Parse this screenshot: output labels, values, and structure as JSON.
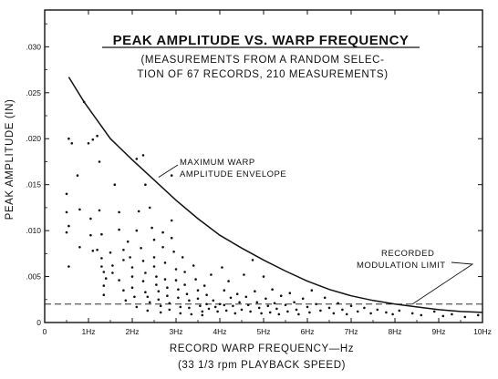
{
  "chart_data": {
    "type": "scatter",
    "title": "PEAK AMPLITUDE  VS. WARP FREQUENCY",
    "subtitle_lines": [
      "(MEASUREMENTS FROM A RANDOM SELEC-",
      "TION OF 67 RECORDS, 210 MEASUREMENTS)"
    ],
    "xlabel": "RECORD WARP FREQUENCY—Hz",
    "xlabel_sub": "(33 1/3 rpm  PLAYBACK SPEED)",
    "ylabel": "PEAK AMPLITUDE (IN)",
    "xlim": [
      0,
      10
    ],
    "ylim": [
      0,
      0.034
    ],
    "grid": false,
    "x_ticks": [
      {
        "value": 0,
        "label": "0"
      },
      {
        "value": 1,
        "label": "1Hz"
      },
      {
        "value": 2,
        "label": "2Hz"
      },
      {
        "value": 3,
        "label": "3Hz"
      },
      {
        "value": 4,
        "label": "4Hz"
      },
      {
        "value": 5,
        "label": "5Hz"
      },
      {
        "value": 6,
        "label": "6Hz"
      },
      {
        "value": 7,
        "label": "7Hz"
      },
      {
        "value": 8,
        "label": "8Hz"
      },
      {
        "value": 9,
        "label": "9Hz"
      },
      {
        "value": 10,
        "label": "10Hz"
      }
    ],
    "y_ticks": [
      {
        "value": 0,
        "label": "0"
      },
      {
        "value": 0.005,
        "label": ".005"
      },
      {
        "value": 0.01,
        "label": ".010"
      },
      {
        "value": 0.015,
        "label": ".015"
      },
      {
        "value": 0.02,
        "label": ".020"
      },
      {
        "value": 0.025,
        "label": ".025"
      },
      {
        "value": 0.03,
        "label": ".030"
      }
    ],
    "series": [
      {
        "name": "MAXIMUM WARP AMPLITUDE ENVELOPE",
        "kind": "line",
        "x": [
          0.55,
          0.9,
          1.2,
          1.5,
          2.0,
          2.5,
          3.0,
          3.5,
          4.0,
          4.5,
          5.0,
          5.5,
          6.0,
          6.5,
          7.0,
          7.5,
          8.0,
          8.5,
          9.0,
          9.5,
          10.0
        ],
        "y": [
          0.0267,
          0.024,
          0.022,
          0.02,
          0.0177,
          0.0155,
          0.0133,
          0.0113,
          0.0095,
          0.0081,
          0.0068,
          0.0056,
          0.0045,
          0.0036,
          0.0029,
          0.0024,
          0.002,
          0.0017,
          0.0014,
          0.0012,
          0.0011
        ]
      },
      {
        "name": "RECORDED MODULATION LIMIT",
        "kind": "dashed",
        "x": [
          0.0,
          10.0
        ],
        "y": [
          0.002,
          0.002
        ]
      },
      {
        "name": "measurements",
        "kind": "scatter",
        "points": [
          [
            0.5,
            0.014
          ],
          [
            0.5,
            0.012
          ],
          [
            0.55,
            0.0105
          ],
          [
            0.5,
            0.0098
          ],
          [
            0.55,
            0.0061
          ],
          [
            0.55,
            0.02
          ],
          [
            0.62,
            0.0195
          ],
          [
            0.75,
            0.016
          ],
          [
            0.8,
            0.0123
          ],
          [
            0.8,
            0.0082
          ],
          [
            0.9,
            0.024
          ],
          [
            1.0,
            0.0195
          ],
          [
            1.05,
            0.0095
          ],
          [
            1.05,
            0.0113
          ],
          [
            1.1,
            0.0078
          ],
          [
            1.1,
            0.0199
          ],
          [
            1.2,
            0.0203
          ],
          [
            1.25,
            0.0175
          ],
          [
            1.25,
            0.0122
          ],
          [
            1.3,
            0.0096
          ],
          [
            1.2,
            0.0079
          ],
          [
            1.3,
            0.007
          ],
          [
            1.3,
            0.0061
          ],
          [
            1.35,
            0.0055
          ],
          [
            1.4,
            0.0048
          ],
          [
            1.35,
            0.004
          ],
          [
            1.35,
            0.003
          ],
          [
            1.5,
            0.0076
          ],
          [
            1.55,
            0.0062
          ],
          [
            1.55,
            0.0054
          ],
          [
            1.6,
            0.015
          ],
          [
            1.7,
            0.012
          ],
          [
            1.7,
            0.0101
          ],
          [
            1.8,
            0.0079
          ],
          [
            1.8,
            0.0068
          ],
          [
            1.7,
            0.0046
          ],
          [
            1.8,
            0.0035
          ],
          [
            1.85,
            0.0024
          ],
          [
            1.9,
            0.0088
          ],
          [
            1.95,
            0.0071
          ],
          [
            2.0,
            0.006
          ],
          [
            2.0,
            0.005
          ],
          [
            2.0,
            0.0038
          ],
          [
            2.05,
            0.0028
          ],
          [
            2.1,
            0.0017
          ],
          [
            2.1,
            0.01
          ],
          [
            2.15,
            0.0121
          ],
          [
            2.2,
            0.0081
          ],
          [
            2.25,
            0.0067
          ],
          [
            2.3,
            0.0054
          ],
          [
            2.25,
            0.0045
          ],
          [
            2.3,
            0.0033
          ],
          [
            2.35,
            0.0028
          ],
          [
            2.4,
            0.0022
          ],
          [
            2.35,
            0.0013
          ],
          [
            2.1,
            0.0178
          ],
          [
            2.25,
            0.0182
          ],
          [
            2.3,
            0.015
          ],
          [
            2.4,
            0.0125
          ],
          [
            2.45,
            0.0103
          ],
          [
            2.5,
            0.009
          ],
          [
            2.5,
            0.0071
          ],
          [
            2.5,
            0.0061
          ],
          [
            2.55,
            0.005
          ],
          [
            2.55,
            0.0041
          ],
          [
            2.6,
            0.0034
          ],
          [
            2.6,
            0.0025
          ],
          [
            2.65,
            0.0018
          ],
          [
            2.65,
            0.0011
          ],
          [
            2.7,
            0.0098
          ],
          [
            2.7,
            0.0082
          ],
          [
            2.75,
            0.0065
          ],
          [
            2.75,
            0.0047
          ],
          [
            2.8,
            0.0038
          ],
          [
            2.8,
            0.0029
          ],
          [
            2.85,
            0.0021
          ],
          [
            2.85,
            0.0014
          ],
          [
            2.9,
            0.016
          ],
          [
            2.9,
            0.0111
          ],
          [
            2.9,
            0.0092
          ],
          [
            2.95,
            0.0077
          ],
          [
            3.0,
            0.0058
          ],
          [
            3.0,
            0.0046
          ],
          [
            3.05,
            0.0036
          ],
          [
            3.05,
            0.0027
          ],
          [
            3.1,
            0.0017
          ],
          [
            3.1,
            0.001
          ],
          [
            3.15,
            0.0071
          ],
          [
            3.2,
            0.0055
          ],
          [
            3.2,
            0.0041
          ],
          [
            3.25,
            0.0031
          ],
          [
            3.3,
            0.0024
          ],
          [
            3.3,
            0.0016
          ],
          [
            3.35,
            0.0009
          ],
          [
            3.4,
            0.0062
          ],
          [
            3.45,
            0.0047
          ],
          [
            3.5,
            0.0035
          ],
          [
            3.5,
            0.0026
          ],
          [
            3.55,
            0.0018
          ],
          [
            3.6,
            0.0012
          ],
          [
            3.6,
            0.0008
          ],
          [
            3.65,
            0.004
          ],
          [
            3.7,
            0.003
          ],
          [
            3.7,
            0.002
          ],
          [
            3.75,
            0.0015
          ],
          [
            3.8,
            0.0052
          ],
          [
            3.85,
            0.0024
          ],
          [
            3.9,
            0.0017
          ],
          [
            3.95,
            0.0012
          ],
          [
            4.0,
            0.002
          ],
          [
            4.05,
            0.006
          ],
          [
            4.1,
            0.0035
          ],
          [
            4.1,
            0.0019
          ],
          [
            4.15,
            0.0013
          ],
          [
            4.2,
            0.0045
          ],
          [
            4.25,
            0.0027
          ],
          [
            4.3,
            0.0018
          ],
          [
            4.35,
            0.001
          ],
          [
            4.4,
            0.0031
          ],
          [
            4.45,
            0.0022
          ],
          [
            4.5,
            0.0014
          ],
          [
            4.55,
            0.0052
          ],
          [
            4.6,
            0.0028
          ],
          [
            4.65,
            0.0019
          ],
          [
            4.7,
            0.0012
          ],
          [
            4.75,
            0.0068
          ],
          [
            4.8,
            0.0034
          ],
          [
            4.85,
            0.0022
          ],
          [
            4.9,
            0.0016
          ],
          [
            4.95,
            0.001
          ],
          [
            5.0,
            0.005
          ],
          [
            5.05,
            0.0026
          ],
          [
            5.1,
            0.0018
          ],
          [
            5.15,
            0.0011
          ],
          [
            5.2,
            0.0036
          ],
          [
            5.25,
            0.0021
          ],
          [
            5.3,
            0.0015
          ],
          [
            5.35,
            0.0009
          ],
          [
            5.4,
            0.0029
          ],
          [
            5.5,
            0.0019
          ],
          [
            5.55,
            0.0012
          ],
          [
            5.6,
            0.0032
          ],
          [
            5.7,
            0.0022
          ],
          [
            5.75,
            0.0014
          ],
          [
            5.8,
            0.0009
          ],
          [
            5.9,
            0.0026
          ],
          [
            6.0,
            0.0017
          ],
          [
            6.05,
            0.0011
          ],
          [
            6.1,
            0.0035
          ],
          [
            6.2,
            0.002
          ],
          [
            6.3,
            0.0013
          ],
          [
            6.4,
            0.0027
          ],
          [
            6.5,
            0.0016
          ],
          [
            6.6,
            0.001
          ],
          [
            6.7,
            0.0021
          ],
          [
            6.8,
            0.0014
          ],
          [
            6.9,
            0.0009
          ],
          [
            7.0,
            0.0018
          ],
          [
            7.15,
            0.0012
          ],
          [
            7.3,
            0.0016
          ],
          [
            7.45,
            0.001
          ],
          [
            7.6,
            0.0014
          ],
          [
            7.8,
            0.0011
          ],
          [
            7.95,
            0.0009
          ],
          [
            8.1,
            0.0013
          ],
          [
            8.4,
            0.001
          ],
          [
            8.6,
            0.0008
          ],
          [
            8.9,
            0.0012
          ],
          [
            9.1,
            0.0007
          ],
          [
            9.3,
            0.0009
          ],
          [
            9.6,
            0.0006
          ],
          [
            9.9,
            0.0008
          ]
        ]
      }
    ],
    "annotations": [
      {
        "text_lines": [
          "MAXIMUM  WARP",
          "AMPLITUDE ENVELOPE"
        ],
        "points_to": [
          2.6,
          0.0158
        ]
      },
      {
        "text_lines": [
          "RECORDED",
          "MODULATION LIMIT"
        ],
        "points_to": [
          8.4,
          0.002
        ]
      }
    ]
  }
}
